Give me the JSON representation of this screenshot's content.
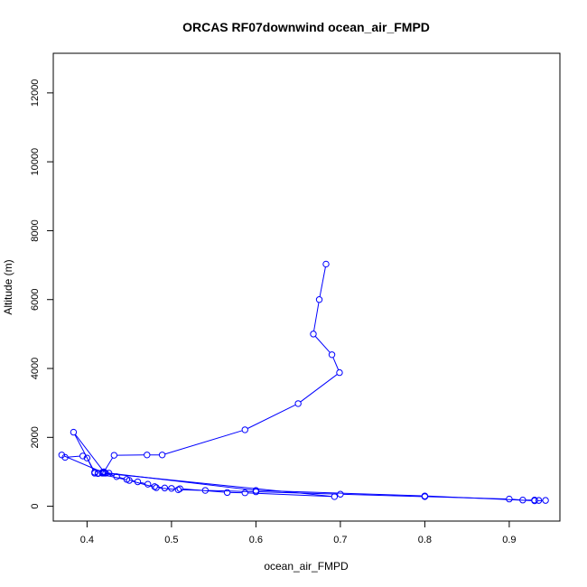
{
  "chart_data": {
    "type": "line",
    "title": "ORCAS RF07downwind ocean_air_FMPD",
    "xlabel": "ocean_air_FMPD",
    "ylabel": "Altitude (m)",
    "xlim": [
      0.36,
      0.96
    ],
    "ylim": [
      -430,
      13150
    ],
    "x_ticks": [
      0.4,
      0.5,
      0.6,
      0.7,
      0.8,
      0.9
    ],
    "x_tick_labels": [
      "0.4",
      "0.5",
      "0.6",
      "0.7",
      "0.8",
      "0.9"
    ],
    "y_ticks": [
      0,
      2000,
      4000,
      6000,
      8000,
      10000,
      12000
    ],
    "y_tick_labels": [
      "0",
      "2000",
      "4000",
      "6000",
      "8000",
      "10000",
      "12000"
    ],
    "grid": false,
    "series": [
      {
        "color": "#0000ff",
        "marker": "open-circle",
        "x": [
          0.683,
          0.675,
          0.668,
          0.69,
          0.699,
          0.65,
          0.587,
          0.489,
          0.471,
          0.432,
          0.42,
          0.384,
          0.409,
          0.418,
          0.422,
          0.426,
          0.418,
          0.413,
          0.409,
          0.4,
          0.395,
          0.374,
          0.37,
          0.42,
          0.435,
          0.447,
          0.46,
          0.472,
          0.48,
          0.492,
          0.5,
          0.51,
          0.566,
          0.587,
          0.693,
          0.42,
          0.413,
          0.45,
          0.482,
          0.508,
          0.54,
          0.6,
          0.7,
          0.8,
          0.9,
          0.916,
          0.93,
          0.935,
          0.943,
          0.93,
          0.8,
          0.6,
          0.42
        ],
        "y": [
          7030,
          6000,
          5000,
          4400,
          3880,
          2980,
          2220,
          1490,
          1490,
          1480,
          1000,
          2150,
          990,
          980,
          960,
          960,
          960,
          960,
          960,
          1400,
          1460,
          1420,
          1490,
          970,
          860,
          780,
          710,
          640,
          570,
          530,
          520,
          510,
          400,
          390,
          280,
          960,
          950,
          750,
          540,
          480,
          460,
          420,
          350,
          280,
          210,
          180,
          180,
          170,
          170,
          160,
          300,
          460,
          980
        ]
      }
    ]
  }
}
